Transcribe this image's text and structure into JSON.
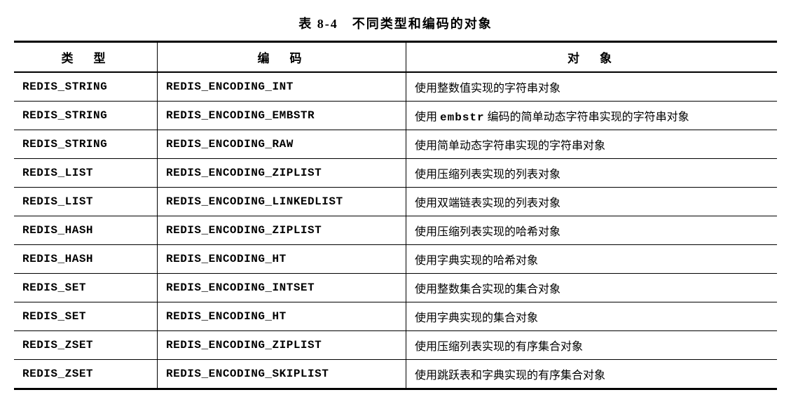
{
  "caption": "表 8-4　不同类型和编码的对象",
  "columns": [
    "类　型",
    "编　码",
    "对　象"
  ],
  "rows": [
    {
      "type": "REDIS_STRING",
      "encoding": "REDIS_ENCODING_INT",
      "desc_pre": "使用整数值实现的字符串对象",
      "desc_mono": "",
      "desc_post": ""
    },
    {
      "type": "REDIS_STRING",
      "encoding": "REDIS_ENCODING_EMBSTR",
      "desc_pre": "使用 ",
      "desc_mono": "embstr",
      "desc_post": " 编码的简单动态字符串实现的字符串对象"
    },
    {
      "type": "REDIS_STRING",
      "encoding": "REDIS_ENCODING_RAW",
      "desc_pre": "使用简单动态字符串实现的字符串对象",
      "desc_mono": "",
      "desc_post": ""
    },
    {
      "type": "REDIS_LIST",
      "encoding": "REDIS_ENCODING_ZIPLIST",
      "desc_pre": "使用压缩列表实现的列表对象",
      "desc_mono": "",
      "desc_post": ""
    },
    {
      "type": "REDIS_LIST",
      "encoding": "REDIS_ENCODING_LINKEDLIST",
      "desc_pre": "使用双端链表实现的列表对象",
      "desc_mono": "",
      "desc_post": ""
    },
    {
      "type": "REDIS_HASH",
      "encoding": "REDIS_ENCODING_ZIPLIST",
      "desc_pre": "使用压缩列表实现的哈希对象",
      "desc_mono": "",
      "desc_post": ""
    },
    {
      "type": "REDIS_HASH",
      "encoding": "REDIS_ENCODING_HT",
      "desc_pre": "使用字典实现的哈希对象",
      "desc_mono": "",
      "desc_post": ""
    },
    {
      "type": "REDIS_SET",
      "encoding": "REDIS_ENCODING_INTSET",
      "desc_pre": "使用整数集合实现的集合对象",
      "desc_mono": "",
      "desc_post": ""
    },
    {
      "type": "REDIS_SET",
      "encoding": "REDIS_ENCODING_HT",
      "desc_pre": "使用字典实现的集合对象",
      "desc_mono": "",
      "desc_post": ""
    },
    {
      "type": "REDIS_ZSET",
      "encoding": "REDIS_ENCODING_ZIPLIST",
      "desc_pre": "使用压缩列表实现的有序集合对象",
      "desc_mono": "",
      "desc_post": ""
    },
    {
      "type": "REDIS_ZSET",
      "encoding": "REDIS_ENCODING_SKIPLIST",
      "desc_pre": "使用跳跃表和字典实现的有序集合对象",
      "desc_mono": "",
      "desc_post": ""
    }
  ]
}
